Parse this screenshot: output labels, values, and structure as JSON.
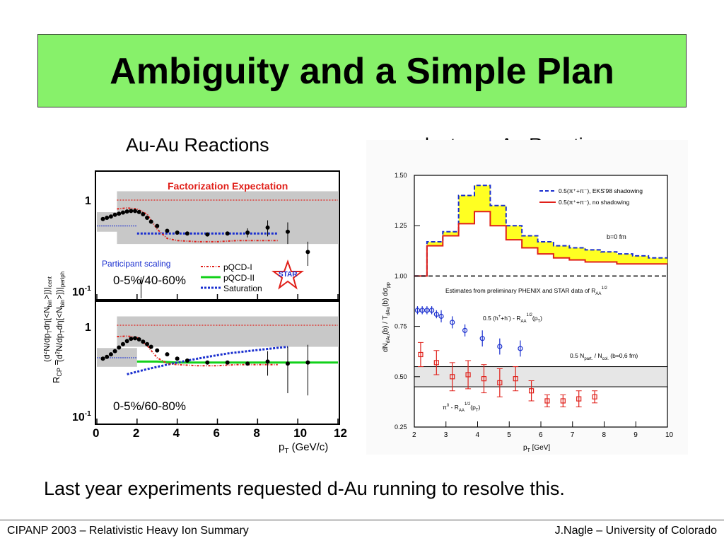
{
  "slide": {
    "title": "Ambiguity and a Simple Plan",
    "left_heading": "Au-Au Reactions",
    "right_heading": "deuteron-Au Reactions",
    "bottom_text": "Last year experiments requested d-Au running to resolve this.",
    "footer_left": "CIPANP 2003 – Relativistic Heavy Ion Summary",
    "footer_right": "J.Nagle – University of Colorado"
  },
  "colors": {
    "title_bg": "#87f16a",
    "pqcd1": "#e0201a",
    "pqcd2": "#12d11a",
    "saturation": "#1a2fcf",
    "band_gray": "#c8c8c8",
    "factorization": "#e0201a",
    "dau_blue": "#1a2fcf",
    "dau_red": "#e0201a",
    "yellow_band": "#ffff22"
  },
  "chart_data": [
    {
      "type": "scatter",
      "panel": "Au-Au top",
      "xlim": [
        0,
        12
      ],
      "ylim_log": [
        0.1,
        1.5
      ],
      "ytick_labels": [
        "1",
        "10-1"
      ],
      "annotation_header": "Factorization Expectation",
      "participant_label": "Participant scaling",
      "centrality": "0-5%/40-60%",
      "legend": [
        "pQCD-I",
        "pQCD-II",
        "Saturation"
      ],
      "logo": "STAR",
      "points": [
        [
          0.3,
          0.62
        ],
        [
          0.5,
          0.64
        ],
        [
          0.7,
          0.66
        ],
        [
          0.9,
          0.69
        ],
        [
          1.1,
          0.71
        ],
        [
          1.3,
          0.73
        ],
        [
          1.5,
          0.75
        ],
        [
          1.7,
          0.76
        ],
        [
          1.9,
          0.76
        ],
        [
          2.1,
          0.74
        ],
        [
          2.3,
          0.7
        ],
        [
          2.5,
          0.64
        ],
        [
          2.7,
          0.58
        ],
        [
          3.0,
          0.52
        ],
        [
          3.5,
          0.46
        ],
        [
          4.0,
          0.44
        ],
        [
          4.5,
          0.43
        ],
        [
          5.5,
          0.42
        ],
        [
          6.5,
          0.43
        ],
        [
          7.5,
          0.44
        ],
        [
          8.5,
          0.5
        ],
        [
          9.5,
          0.45
        ],
        [
          10.5,
          0.27
        ]
      ],
      "errors": [
        [
          7.5,
          0.05
        ],
        [
          8.5,
          0.1
        ],
        [
          9.5,
          0.12
        ],
        [
          10.5,
          0.08
        ]
      ],
      "band_gray": [
        [
          1.0,
          0.33,
          1.0
        ],
        [
          0.0,
          0.45,
          0.59
        ]
      ],
      "factorization_line": 1.0,
      "pqcd1": [
        [
          1.0,
          0.8
        ],
        [
          1.5,
          0.82
        ],
        [
          2.0,
          0.8
        ],
        [
          2.5,
          0.7
        ],
        [
          3.0,
          0.48
        ],
        [
          3.5,
          0.38
        ],
        [
          4.0,
          0.36
        ],
        [
          5.0,
          0.35
        ],
        [
          6.0,
          0.35
        ],
        [
          7.0,
          0.36
        ],
        [
          8.0,
          0.36
        ],
        [
          9.0,
          0.36
        ]
      ],
      "saturation_curve": [
        [
          2.0,
          0.43
        ],
        [
          3.0,
          0.43
        ],
        [
          4.0,
          0.43
        ],
        [
          5.0,
          0.43
        ],
        [
          6.0,
          0.43
        ],
        [
          7.0,
          0.43
        ],
        [
          8.0,
          0.43
        ],
        [
          9.0,
          0.43
        ]
      ],
      "participant_line": 0.52
    },
    {
      "type": "scatter",
      "panel": "Au-Au bottom",
      "xlim": [
        0,
        12
      ],
      "ylim_log": [
        0.1,
        1.5
      ],
      "ytick_labels": [
        "1",
        "10-1"
      ],
      "centrality": "0-5%/60-80%",
      "xtick_labels": [
        "0",
        "2",
        "4",
        "6",
        "8",
        "10",
        "12"
      ],
      "xlabel": "pT (GeV/c)",
      "ylabel": "RCP = (d2N/dpTdη[<Nbin>])cent / (d2N/dpTdη[<Nbin>])periph",
      "points": [
        [
          0.3,
          0.43
        ],
        [
          0.5,
          0.45
        ],
        [
          0.7,
          0.48
        ],
        [
          0.9,
          0.52
        ],
        [
          1.1,
          0.57
        ],
        [
          1.3,
          0.62
        ],
        [
          1.5,
          0.67
        ],
        [
          1.7,
          0.71
        ],
        [
          1.9,
          0.72
        ],
        [
          2.1,
          0.7
        ],
        [
          2.3,
          0.66
        ],
        [
          2.5,
          0.62
        ],
        [
          2.7,
          0.58
        ],
        [
          3.0,
          0.53
        ],
        [
          3.5,
          0.48
        ],
        [
          4.0,
          0.43
        ],
        [
          4.5,
          0.41
        ],
        [
          5.5,
          0.39
        ],
        [
          6.5,
          0.39
        ],
        [
          7.5,
          0.38
        ],
        [
          8.5,
          0.4
        ],
        [
          9.5,
          0.38
        ],
        [
          10.5,
          0.39
        ]
      ],
      "errors": [
        [
          8.5,
          0.12
        ],
        [
          9.5,
          0.2
        ],
        [
          10.5,
          0.22
        ]
      ],
      "band_gray": [
        [
          1.0,
          0.58,
          1.0
        ],
        [
          0.0,
          0.35,
          0.45
        ]
      ],
      "factorization_line": 1.0,
      "pqcd1": [
        [
          1.0,
          0.75
        ],
        [
          1.5,
          0.76
        ],
        [
          2.0,
          0.74
        ],
        [
          2.5,
          0.6
        ],
        [
          3.0,
          0.44
        ],
        [
          3.5,
          0.38
        ],
        [
          4.0,
          0.37
        ],
        [
          5.0,
          0.36
        ],
        [
          6.0,
          0.36
        ],
        [
          7.0,
          0.37
        ],
        [
          8.0,
          0.37
        ],
        [
          9.0,
          0.37
        ]
      ],
      "pqcd2": [
        [
          2.0,
          0.4
        ],
        [
          3.0,
          0.4
        ],
        [
          4.0,
          0.39
        ],
        [
          5.0,
          0.39
        ],
        [
          6.0,
          0.39
        ],
        [
          7.0,
          0.39
        ],
        [
          8.0,
          0.39
        ],
        [
          9.0,
          0.39
        ],
        [
          10.0,
          0.39
        ],
        [
          11.0,
          0.39
        ],
        [
          12.0,
          0.39
        ]
      ],
      "saturation_curve": [
        [
          1.5,
          0.29
        ],
        [
          2.5,
          0.33
        ],
        [
          3.5,
          0.37
        ],
        [
          4.5,
          0.41
        ],
        [
          5.5,
          0.45
        ],
        [
          6.5,
          0.49
        ],
        [
          7.5,
          0.52
        ],
        [
          8.5,
          0.55
        ],
        [
          9.5,
          0.58
        ]
      ]
    },
    {
      "type": "line",
      "panel": "deuteron-Au",
      "xlim": [
        2,
        10
      ],
      "ylim": [
        0.25,
        1.5
      ],
      "xtick_labels": [
        "2",
        "3",
        "4",
        "5",
        "6",
        "7",
        "8",
        "9",
        "10"
      ],
      "ytick_labels": [
        "0.25",
        "0.50",
        "0.75",
        "1.00",
        "1.25",
        "1.50"
      ],
      "xlabel": "pT [GeV]",
      "ylabel": "dNdAu(b) / TdAu(b) dσpp",
      "legend": [
        "0.5(π⁺+π⁻), EKS'98 shadowing",
        "0.5(π⁺+π⁻), no shadowing"
      ],
      "annotations": [
        "b=0 fm",
        "Estimates from preliminary PHENIX and STAR data of RAA 1/2",
        "0.5 (h⁺+h⁻) - RAA 1/2(pT)",
        "0.5 Npart. / Ncol. (b=0,6 fm)",
        "π⁰ - RAA 1/2(pT)"
      ],
      "eks98_step": [
        [
          2.0,
          1.0
        ],
        [
          2.4,
          1.17
        ],
        [
          2.9,
          1.22
        ],
        [
          3.4,
          1.4
        ],
        [
          3.9,
          1.45
        ],
        [
          4.4,
          1.35
        ],
        [
          4.9,
          1.25
        ],
        [
          5.4,
          1.2
        ],
        [
          5.9,
          1.17
        ],
        [
          6.4,
          1.15
        ],
        [
          6.9,
          1.14
        ],
        [
          7.4,
          1.13
        ],
        [
          7.9,
          1.12
        ],
        [
          8.4,
          1.11
        ],
        [
          8.9,
          1.1
        ],
        [
          9.4,
          1.09
        ],
        [
          10.0,
          1.09
        ]
      ],
      "noshadow_step": [
        [
          2.0,
          1.0
        ],
        [
          2.4,
          1.15
        ],
        [
          2.9,
          1.2
        ],
        [
          3.4,
          1.26
        ],
        [
          3.9,
          1.32
        ],
        [
          4.4,
          1.25
        ],
        [
          4.9,
          1.18
        ],
        [
          5.4,
          1.14
        ],
        [
          5.9,
          1.11
        ],
        [
          6.4,
          1.09
        ],
        [
          6.9,
          1.08
        ],
        [
          7.4,
          1.07
        ],
        [
          7.9,
          1.07
        ],
        [
          8.4,
          1.06
        ],
        [
          8.9,
          1.06
        ],
        [
          9.4,
          1.06
        ],
        [
          10.0,
          1.06
        ]
      ],
      "reference_line": 1.0,
      "band": [
        0.45,
        0.55
      ],
      "blue_points": [
        [
          2.1,
          0.83,
          0.02
        ],
        [
          2.25,
          0.83,
          0.02
        ],
        [
          2.4,
          0.83,
          0.02
        ],
        [
          2.55,
          0.83,
          0.02
        ],
        [
          2.7,
          0.81,
          0.02
        ],
        [
          2.85,
          0.8,
          0.03
        ],
        [
          3.2,
          0.77,
          0.03
        ],
        [
          3.6,
          0.73,
          0.03
        ],
        [
          4.15,
          0.69,
          0.04
        ],
        [
          4.7,
          0.65,
          0.04
        ],
        [
          5.35,
          0.64,
          0.04
        ]
      ],
      "red_points": [
        [
          2.2,
          0.61,
          0.06
        ],
        [
          2.7,
          0.57,
          0.06
        ],
        [
          3.2,
          0.5,
          0.07
        ],
        [
          3.7,
          0.51,
          0.07
        ],
        [
          4.2,
          0.49,
          0.07
        ],
        [
          4.7,
          0.47,
          0.07
        ],
        [
          5.2,
          0.49,
          0.06
        ],
        [
          5.7,
          0.43,
          0.05
        ],
        [
          6.2,
          0.38,
          0.03
        ],
        [
          6.7,
          0.38,
          0.03
        ],
        [
          7.2,
          0.39,
          0.04
        ],
        [
          7.7,
          0.4,
          0.03
        ]
      ]
    }
  ]
}
